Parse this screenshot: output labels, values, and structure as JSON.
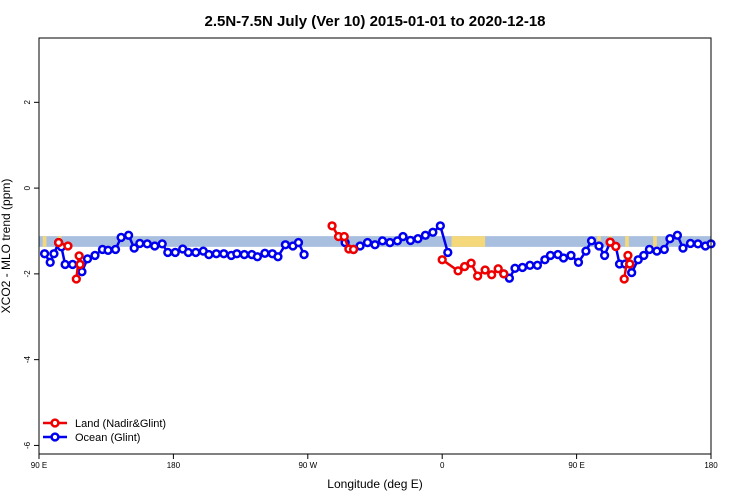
{
  "chart_data": {
    "type": "line",
    "title": "2.5N-7.5N July (Ver 10)   2015-01-01 to 2020-12-18",
    "xlabel": "Longitude (deg E)",
    "ylabel": "XCO2 - MLO trend (ppm)",
    "xlim": [
      90,
      450
    ],
    "ylim": [
      -6.2,
      3.5
    ],
    "x_ticks": [
      {
        "value": 90,
        "label": "90 E"
      },
      {
        "value": 162,
        "label": "180"
      },
      {
        "value": 234,
        "label": "90 W"
      },
      {
        "value": 306,
        "label": "0"
      },
      {
        "value": 378,
        "label": "90 E"
      },
      {
        "value": 450,
        "label": "180"
      }
    ],
    "y_ticks": [
      {
        "value": 2,
        "label": "2"
      },
      {
        "value": 0,
        "label": "0"
      },
      {
        "value": -2,
        "label": "-2"
      },
      {
        "value": -4,
        "label": "-4"
      },
      {
        "value": -6,
        "label": "-6"
      }
    ],
    "band": {
      "y_range": [
        -1.37,
        -1.12
      ],
      "base_color": "#a8bfdf",
      "land_color": "#f5d87a",
      "land_segments": [
        [
          92,
          94
        ],
        [
          100,
          102
        ],
        [
          311,
          329
        ],
        [
          389,
          391
        ],
        [
          395,
          397
        ],
        [
          404,
          406
        ],
        [
          419,
          421
        ]
      ]
    },
    "series": [
      {
        "name": "Land (Nadir&Glint)",
        "color": "#ee0000",
        "segments": [
          [
            [
              100.5,
              -1.27
            ],
            [
              105.5,
              -1.35
            ]
          ],
          [
            [
              110.0,
              -2.12
            ],
            [
              111.5,
              -1.58
            ],
            [
              112.0,
              -1.78
            ]
          ],
          [
            [
              247.0,
              -0.88
            ],
            [
              250.5,
              -1.13
            ],
            [
              253.5,
              -1.13
            ],
            [
              256.0,
              -1.42
            ],
            [
              258.5,
              -1.43
            ]
          ],
          [
            [
              306.0,
              -1.67
            ],
            [
              314.5,
              -1.93
            ],
            [
              318.0,
              -1.83
            ],
            [
              321.5,
              -1.75
            ],
            [
              325.0,
              -2.05
            ],
            [
              329.0,
              -1.91
            ],
            [
              332.5,
              -2.02
            ],
            [
              336.0,
              -1.88
            ],
            [
              339.0,
              -2.0
            ]
          ],
          [
            [
              396.0,
              -1.26
            ],
            [
              399.0,
              -1.36
            ]
          ],
          [
            [
              403.5,
              -2.12
            ],
            [
              405.5,
              -1.57
            ],
            [
              406.5,
              -1.77
            ]
          ]
        ]
      },
      {
        "name": "Ocean (Glint)",
        "color": "#0000ee",
        "segments": [
          [
            [
              93.0,
              -1.53
            ],
            [
              96.0,
              -1.73
            ],
            [
              98.0,
              -1.53
            ],
            [
              100.5,
              -1.27
            ],
            [
              102.0,
              -1.37
            ],
            [
              104.0,
              -1.78
            ],
            [
              108.0,
              -1.78
            ],
            [
              112.0,
              -1.78
            ],
            [
              113.0,
              -1.95
            ],
            [
              116.0,
              -1.65
            ],
            [
              120.0,
              -1.57
            ],
            [
              124.0,
              -1.43
            ],
            [
              127.0,
              -1.45
            ],
            [
              131.0,
              -1.43
            ],
            [
              134.0,
              -1.15
            ],
            [
              138.0,
              -1.1
            ],
            [
              141.0,
              -1.4
            ],
            [
              144.0,
              -1.29
            ],
            [
              148.0,
              -1.3
            ],
            [
              152.0,
              -1.35
            ],
            [
              156.0,
              -1.3
            ],
            [
              159.0,
              -1.5
            ],
            [
              163.0,
              -1.5
            ],
            [
              167.0,
              -1.42
            ],
            [
              170.0,
              -1.5
            ],
            [
              174.0,
              -1.5
            ],
            [
              178.0,
              -1.47
            ],
            [
              181.0,
              -1.55
            ],
            [
              185.0,
              -1.53
            ],
            [
              189.0,
              -1.53
            ],
            [
              193.0,
              -1.57
            ],
            [
              196.0,
              -1.53
            ],
            [
              200.0,
              -1.55
            ],
            [
              204.0,
              -1.55
            ],
            [
              207.0,
              -1.6
            ],
            [
              211.0,
              -1.52
            ],
            [
              215.0,
              -1.53
            ],
            [
              218.0,
              -1.6
            ],
            [
              222.0,
              -1.32
            ],
            [
              226.0,
              -1.35
            ],
            [
              229.0,
              -1.27
            ],
            [
              232.0,
              -1.55
            ]
          ],
          [
            [
              254.0,
              -1.27
            ],
            [
              258.5,
              -1.43
            ],
            [
              262.0,
              -1.35
            ],
            [
              266.0,
              -1.27
            ],
            [
              270.0,
              -1.32
            ],
            [
              274.0,
              -1.23
            ],
            [
              278.0,
              -1.27
            ],
            [
              282.0,
              -1.23
            ],
            [
              285.0,
              -1.13
            ],
            [
              289.0,
              -1.22
            ],
            [
              293.0,
              -1.18
            ],
            [
              297.0,
              -1.1
            ],
            [
              301.0,
              -1.03
            ],
            [
              305.0,
              -0.88
            ],
            [
              309.0,
              -1.5
            ]
          ],
          [
            [
              339.0,
              -2.0
            ],
            [
              342.0,
              -2.1
            ],
            [
              345.0,
              -1.87
            ],
            [
              349.0,
              -1.85
            ],
            [
              353.0,
              -1.8
            ],
            [
              357.0,
              -1.8
            ],
            [
              361.0,
              -1.67
            ],
            [
              364.0,
              -1.57
            ],
            [
              368.0,
              -1.55
            ],
            [
              371.0,
              -1.63
            ],
            [
              375.0,
              -1.57
            ],
            [
              379.0,
              -1.73
            ],
            [
              383.0,
              -1.47
            ],
            [
              386.0,
              -1.23
            ],
            [
              390.0,
              -1.35
            ],
            [
              393.0,
              -1.57
            ],
            [
              396.0,
              -1.26
            ],
            [
              399.0,
              -1.36
            ],
            [
              401.0,
              -1.77
            ],
            [
              404.0,
              -1.77
            ],
            [
              406.5,
              -1.77
            ],
            [
              407.5,
              -1.97
            ],
            [
              411.0,
              -1.67
            ],
            [
              414.0,
              -1.57
            ],
            [
              417.0,
              -1.43
            ],
            [
              421.0,
              -1.47
            ],
            [
              425.0,
              -1.43
            ],
            [
              428.0,
              -1.18
            ],
            [
              432.0,
              -1.1
            ],
            [
              435.0,
              -1.4
            ],
            [
              439.0,
              -1.29
            ],
            [
              443.0,
              -1.3
            ],
            [
              447.0,
              -1.35
            ],
            [
              450.0,
              -1.3
            ]
          ]
        ]
      }
    ],
    "legend": {
      "position": "bottom-left",
      "entries": [
        {
          "label": "Land (Nadir&Glint)",
          "color": "#ee0000"
        },
        {
          "label": "Ocean (Glint)",
          "color": "#0000ee"
        }
      ]
    },
    "grid": false
  }
}
